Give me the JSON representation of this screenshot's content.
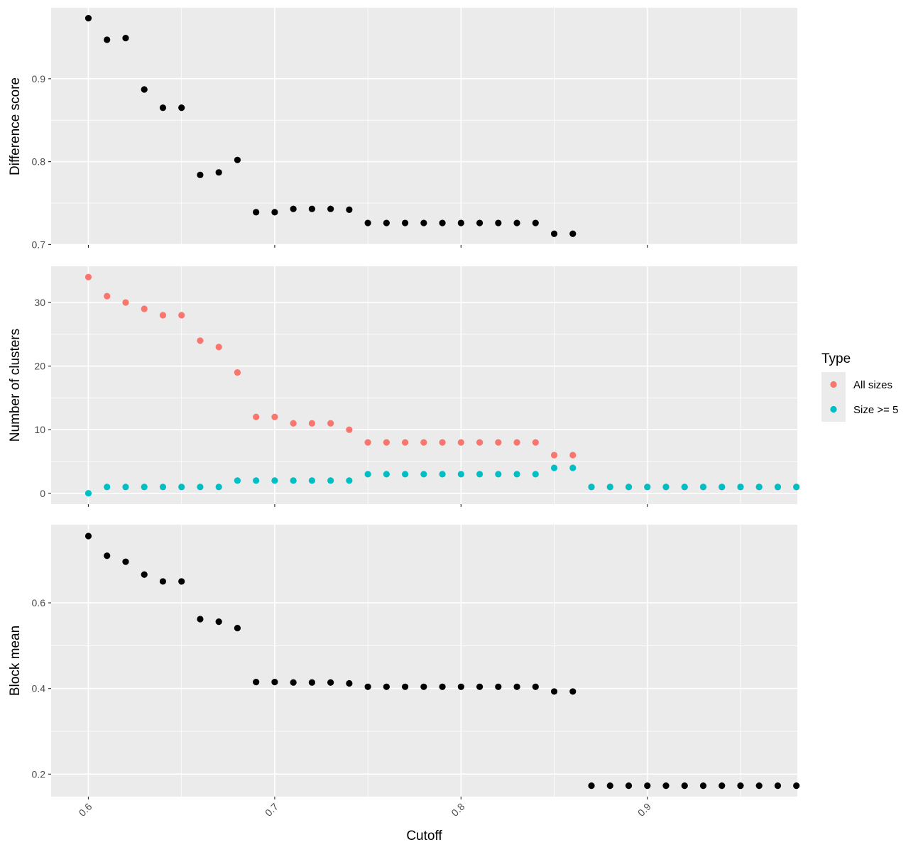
{
  "chart_data": {
    "type": "scatter",
    "xlabel": "Cutoff",
    "x_ticks": [
      "0.6",
      "0.7",
      "0.8",
      "0.9"
    ],
    "x_tick_values": [
      0.6,
      0.7,
      0.8,
      0.9
    ],
    "xlim": [
      0.58,
      0.9805
    ],
    "legend": {
      "title": "Type",
      "placement": "right",
      "entries": [
        {
          "label": "All sizes",
          "color": "#F8766D"
        },
        {
          "label": "Size >= 5",
          "color": "#00BFC4"
        }
      ]
    },
    "panels": [
      {
        "ylabel": "Difference score",
        "ylim": [
          0.6995,
          0.9855
        ],
        "y_ticks": [
          "0.7",
          "0.8",
          "0.9"
        ],
        "y_tick_values": [
          0.7,
          0.8,
          0.9
        ],
        "series": [
          {
            "color": "#000000",
            "x": [
              0.6,
              0.61,
              0.62,
              0.63,
              0.64,
              0.65,
              0.66,
              0.67,
              0.68,
              0.69,
              0.7,
              0.71,
              0.72,
              0.73,
              0.74,
              0.75,
              0.76,
              0.77,
              0.78,
              0.79,
              0.8,
              0.81,
              0.82,
              0.83,
              0.84,
              0.85,
              0.86
            ],
            "y": [
              0.973,
              0.947,
              0.949,
              0.887,
              0.865,
              0.865,
              0.784,
              0.787,
              0.802,
              0.739,
              0.739,
              0.743,
              0.743,
              0.743,
              0.742,
              0.726,
              0.726,
              0.726,
              0.726,
              0.726,
              0.726,
              0.726,
              0.726,
              0.726,
              0.726,
              0.713,
              0.713
            ]
          }
        ]
      },
      {
        "ylabel": "Number of clusters",
        "ylim": [
          -1.7,
          35.7
        ],
        "y_ticks": [
          "0",
          "10",
          "20",
          "30"
        ],
        "y_tick_values": [
          0,
          10,
          20,
          30
        ],
        "series": [
          {
            "name": "All sizes",
            "color": "#F8766D",
            "x": [
              0.6,
              0.61,
              0.62,
              0.63,
              0.64,
              0.65,
              0.66,
              0.67,
              0.68,
              0.69,
              0.7,
              0.71,
              0.72,
              0.73,
              0.74,
              0.75,
              0.76,
              0.77,
              0.78,
              0.79,
              0.8,
              0.81,
              0.82,
              0.83,
              0.84,
              0.85,
              0.86,
              0.87,
              0.88,
              0.89,
              0.9,
              0.91,
              0.92,
              0.93,
              0.94,
              0.95,
              0.96,
              0.97,
              0.98
            ],
            "y": [
              34,
              31,
              30,
              29,
              28,
              28,
              24,
              23,
              19,
              12,
              12,
              11,
              11,
              11,
              10,
              8,
              8,
              8,
              8,
              8,
              8,
              8,
              8,
              8,
              8,
              6,
              6,
              1,
              1,
              1,
              1,
              1,
              1,
              1,
              1,
              1,
              1,
              1,
              1
            ]
          },
          {
            "name": "Size >= 5",
            "color": "#00BFC4",
            "x": [
              0.6,
              0.61,
              0.62,
              0.63,
              0.64,
              0.65,
              0.66,
              0.67,
              0.68,
              0.69,
              0.7,
              0.71,
              0.72,
              0.73,
              0.74,
              0.75,
              0.76,
              0.77,
              0.78,
              0.79,
              0.8,
              0.81,
              0.82,
              0.83,
              0.84,
              0.85,
              0.86,
              0.87,
              0.88,
              0.89,
              0.9,
              0.91,
              0.92,
              0.93,
              0.94,
              0.95,
              0.96,
              0.97,
              0.98
            ],
            "y": [
              0,
              1,
              1,
              1,
              1,
              1,
              1,
              1,
              2,
              2,
              2,
              2,
              2,
              2,
              2,
              3,
              3,
              3,
              3,
              3,
              3,
              3,
              3,
              3,
              3,
              4,
              4,
              1,
              1,
              1,
              1,
              1,
              1,
              1,
              1,
              1,
              1,
              1,
              1
            ]
          }
        ]
      },
      {
        "ylabel": "Block mean",
        "ylim": [
          0.1475,
          0.7825
        ],
        "y_ticks": [
          "0.2",
          "0.4",
          "0.6"
        ],
        "y_tick_values": [
          0.2,
          0.4,
          0.6
        ],
        "series": [
          {
            "color": "#000000",
            "x": [
              0.6,
              0.61,
              0.62,
              0.63,
              0.64,
              0.65,
              0.66,
              0.67,
              0.68,
              0.69,
              0.7,
              0.71,
              0.72,
              0.73,
              0.74,
              0.75,
              0.76,
              0.77,
              0.78,
              0.79,
              0.8,
              0.81,
              0.82,
              0.83,
              0.84,
              0.85,
              0.86,
              0.87,
              0.88,
              0.89,
              0.9,
              0.91,
              0.92,
              0.93,
              0.94,
              0.95,
              0.96,
              0.97,
              0.98
            ],
            "y": [
              0.756,
              0.71,
              0.696,
              0.666,
              0.65,
              0.65,
              0.562,
              0.556,
              0.541,
              0.415,
              0.415,
              0.414,
              0.414,
              0.414,
              0.412,
              0.404,
              0.404,
              0.404,
              0.404,
              0.404,
              0.404,
              0.404,
              0.404,
              0.404,
              0.404,
              0.393,
              0.393,
              0.173,
              0.173,
              0.173,
              0.173,
              0.173,
              0.173,
              0.173,
              0.173,
              0.173,
              0.173,
              0.173,
              0.173
            ]
          }
        ]
      }
    ]
  }
}
